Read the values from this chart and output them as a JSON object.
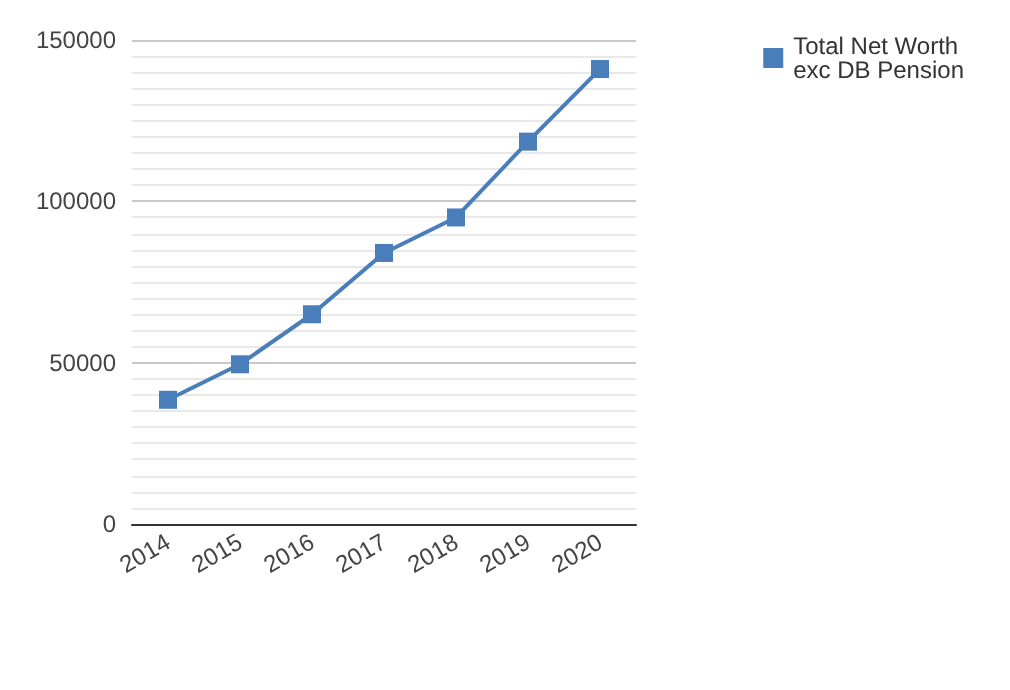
{
  "chart_data": {
    "type": "line",
    "categories": [
      "2014",
      "2015",
      "2016",
      "2017",
      "2018",
      "2019",
      "2020"
    ],
    "series": [
      {
        "name": "Total Net Worth\nexc DB Pension",
        "color": "#4a7ebb",
        "values": [
          38500,
          49500,
          65000,
          84000,
          95000,
          118500,
          141000
        ]
      }
    ],
    "ylim": [
      0,
      150000
    ],
    "yticks": [
      0,
      50000,
      100000,
      150000
    ],
    "grid": "y",
    "legend": "top right",
    "marker": "square",
    "line_style": "solid"
  }
}
